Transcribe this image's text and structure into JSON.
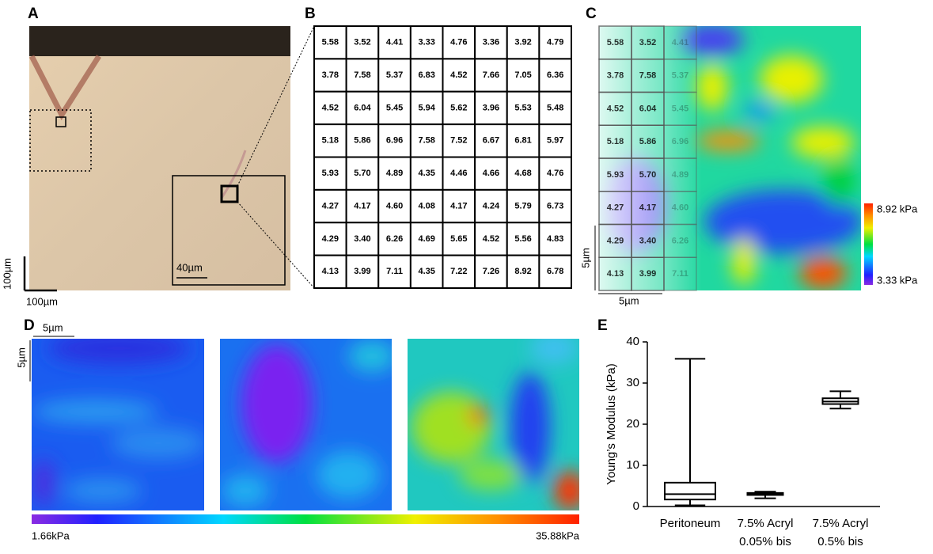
{
  "panel_labels": [
    "A",
    "B",
    "C",
    "D",
    "E"
  ],
  "panel_a": {
    "scale_vertical": "100µm",
    "scale_horizontal": "100µm",
    "inset_scale": "40µm"
  },
  "panel_b": {
    "table": [
      [
        "5.58",
        "3.52",
        "4.41",
        "3.33",
        "4.76",
        "3.36",
        "3.92",
        "4.79"
      ],
      [
        "3.78",
        "7.58",
        "5.37",
        "6.83",
        "4.52",
        "7.66",
        "7.05",
        "6.36"
      ],
      [
        "4.52",
        "6.04",
        "5.45",
        "5.94",
        "5.62",
        "3.96",
        "5.53",
        "5.48"
      ],
      [
        "5.18",
        "5.86",
        "6.96",
        "7.58",
        "7.52",
        "6.67",
        "6.81",
        "5.97"
      ],
      [
        "5.93",
        "5.70",
        "4.89",
        "4.35",
        "4.46",
        "4.66",
        "4.68",
        "4.76"
      ],
      [
        "4.27",
        "4.17",
        "4.60",
        "4.08",
        "4.17",
        "4.24",
        "5.79",
        "6.73"
      ],
      [
        "4.29",
        "3.40",
        "6.26",
        "4.69",
        "5.65",
        "4.52",
        "5.56",
        "4.83"
      ],
      [
        "4.13",
        "3.99",
        "7.11",
        "4.35",
        "7.22",
        "7.26",
        "8.92",
        "6.78"
      ]
    ]
  },
  "panel_c": {
    "colorbar_max": "8.92 kPa",
    "colorbar_min": "3.33 kPa",
    "scale_vertical": "5µm",
    "scale_horizontal": "5µm"
  },
  "panel_d": {
    "scale_horizontal": "5µm",
    "scale_vertical": "5µm",
    "colorbar_min": "1.66kPa",
    "colorbar_max": "35.88kPa"
  },
  "chart_data": {
    "type": "box",
    "y_label": "Young’s Modulus (kPa)",
    "categories": [
      [
        "Peritoneum"
      ],
      [
        "7.5% Acryl",
        "0.05% bis"
      ],
      [
        "7.5% Acryl",
        "0.5% bis"
      ]
    ],
    "boxes": [
      {
        "min": 0.3,
        "q1": 1.7,
        "median": 3.0,
        "q3": 5.8,
        "max": 35.9
      },
      {
        "min": 2.0,
        "q1": 2.8,
        "median": 3.0,
        "q3": 3.3,
        "max": 3.6
      },
      {
        "min": 23.8,
        "q1": 24.9,
        "median": 25.5,
        "q3": 26.3,
        "max": 28.0
      }
    ],
    "ylim": [
      0,
      40
    ],
    "yticks": [
      0,
      10,
      20,
      30,
      40
    ],
    "color": "#000000"
  }
}
